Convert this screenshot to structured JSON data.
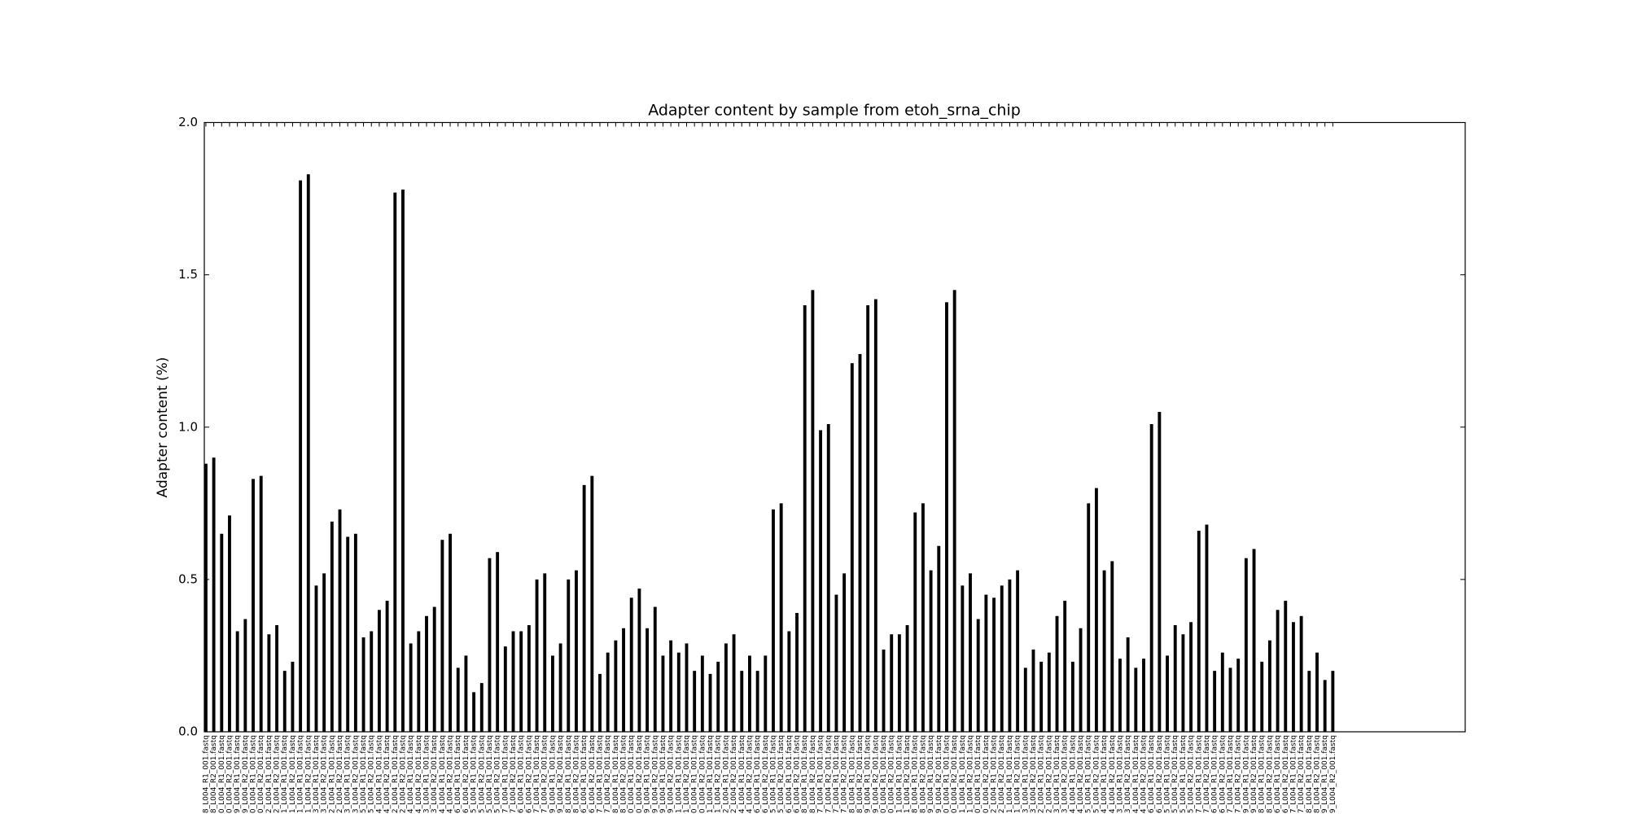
{
  "chart_data": {
    "type": "bar",
    "title": "Adapter content by sample from etoh_srna_chip",
    "y_label": "Adapter content (%)",
    "color": "#000000",
    "xlim": [
      0,
      160
    ],
    "ylim": [
      0,
      2
    ],
    "yticks": [
      {
        "value": 0,
        "label": "0.0"
      },
      0.5,
      {
        "value": 1,
        "label": "1.0"
      },
      1.5,
      {
        "value": 2,
        "label": "2.0"
      }
    ],
    "grid": false,
    "categories": [
      "8_L004_R1_001.fastq",
      "8_L004_R2_001.fastq",
      "0_L004_R1_001.fastq",
      "0_L004_R2_001.fastq",
      "9_L004_R1_001.fastq",
      "9_L004_R2_001.fastq",
      "0_L004_R1_001.fastq",
      "0_L004_R2_001.fastq",
      "2_L004_R1_001.fastq",
      "2_L004_R2_001.fastq",
      "1_L004_R1_001.fastq",
      "1_L004_R2_001.fastq",
      "1_L004_R1_001.fastq",
      "1_L004_R2_001.fastq",
      "3_L004_R1_001.fastq",
      "3_L004_R2_001.fastq",
      "2_L004_R1_001.fastq",
      "2_L004_R2_001.fastq",
      "3_L004_R1_001.fastq",
      "3_L004_R2_001.fastq",
      "5_L004_R1_001.fastq",
      "5_L004_R2_001.fastq",
      "4_L004_R1_001.fastq",
      "4_L004_R2_001.fastq",
      "2_L004_R1_001.fastq",
      "2_L004_R2_001.fastq",
      "4_L004_R1_001.fastq",
      "4_L004_R2_001.fastq",
      "3_L004_R1_001.fastq",
      "3_L004_R2_001.fastq",
      "4_L004_R1_001.fastq",
      "4_L004_R2_001.fastq",
      "6_L004_R1_001.fastq",
      "6_L004_R2_001.fastq",
      "5_L004_R1_001.fastq",
      "5_L004_R2_001.fastq",
      "5_L004_R1_001.fastq",
      "5_L004_R2_001.fastq",
      "7_L004_R1_001.fastq",
      "7_L004_R2_001.fastq",
      "6_L004_R1_001.fastq",
      "6_L004_R2_001.fastq",
      "7_L004_R1_001.fastq",
      "7_L004_R2_001.fastq",
      "9_L004_R1_001.fastq",
      "9_L004_R2_001.fastq",
      "8_L004_R1_001.fastq",
      "8_L004_R2_001.fastq",
      "6_L004_R1_001.fastq",
      "6_L004_R2_001.fastq",
      "7_L004_R1_001.fastq",
      "7_L004_R2_001.fastq",
      "8_L004_R1_001.fastq",
      "8_L004_R2_001.fastq",
      "0_L004_R1_001.fastq",
      "0_L004_R2_001.fastq",
      "9_L004_R1_001.fastq",
      "9_L004_R2_001.fastq",
      "9_L004_R1_001.fastq",
      "9_L004_R2_001.fastq",
      "1_L004_R1_001.fastq",
      "1_L004_R2_001.fastq",
      "0_L004_R1_001.fastq",
      "0_L004_R2_001.fastq",
      "1_L004_R1_001.fastq",
      "1_L004_R2_001.fastq",
      "2_L004_R1_001.fastq",
      "2_L004_R2_001.fastq",
      "4_L004_R1_001.fastq",
      "4_L004_R2_001.fastq",
      "6_L004_R1_001.fastq",
      "6_L004_R2_001.fastq",
      "5_L004_R1_001.fastq",
      "5_L004_R2_001.fastq",
      "6_L004_R1_001.fastq",
      "6_L004_R2_001.fastq",
      "8_L004_R1_001.fastq",
      "8_L004_R2_001.fastq",
      "7_L004_R1_001.fastq",
      "7_L004_R2_001.fastq",
      "7_L004_R1_001.fastq",
      "7_L004_R2_001.fastq",
      "8_L004_R1_001.fastq",
      "8_L004_R2_001.fastq",
      "9_L004_R1_001.fastq",
      "9_L004_R2_001.fastq",
      "0_L004_R1_001.fastq",
      "0_L004_R2_001.fastq",
      "1_L004_R1_001.fastq",
      "1_L004_R2_001.fastq",
      "8_L004_R1_001.fastq",
      "8_L004_R2_001.fastq",
      "9_L004_R1_001.fastq",
      "9_L004_R2_001.fastq",
      "0_L004_R1_001.fastq",
      "0_L004_R2_001.fastq",
      "1_L004_R1_001.fastq",
      "1_L004_R2_001.fastq",
      "0_L004_R1_001.fastq",
      "0_L004_R2_001.fastq",
      "2_L004_R1_001.fastq",
      "2_L004_R2_001.fastq",
      "1_L004_R1_001.fastq",
      "1_L004_R2_001.fastq",
      "3_L004_R1_001.fastq",
      "3_L004_R2_001.fastq",
      "2_L004_R1_001.fastq",
      "2_L004_R2_001.fastq",
      "3_L004_R1_001.fastq",
      "3_L004_R2_001.fastq",
      "4_L004_R1_001.fastq",
      "4_L004_R2_001.fastq",
      "5_L004_R1_001.fastq",
      "5_L004_R2_001.fastq",
      "4_L004_R1_001.fastq",
      "4_L004_R2_001.fastq",
      "3_L004_R1_001.fastq",
      "3_L004_R2_001.fastq",
      "4_L004_R1_001.fastq",
      "4_L004_R2_001.fastq",
      "6_L004_R1_001.fastq",
      "6_L004_R2_001.fastq",
      "5_L004_R1_001.fastq",
      "5_L004_R2_001.fastq",
      "5_L004_R1_001.fastq",
      "5_L004_R2_001.fastq",
      "7_L004_R1_001.fastq",
      "7_L004_R2_001.fastq",
      "6_L004_R1_001.fastq",
      "6_L004_R2_001.fastq",
      "7_L004_R1_001.fastq",
      "7_L004_R2_001.fastq",
      "9_L004_R1_001.fastq",
      "9_L004_R2_001.fastq",
      "8_L004_R1_001.fastq",
      "8_L004_R2_001.fastq",
      "6_L004_R1_001.fastq",
      "6_L004_R2_001.fastq",
      "7_L004_R1_001.fastq",
      "7_L004_R2_001.fastq",
      "8_L004_R1_001.fastq",
      "8_L004_R2_001.fastq",
      "9_L004_R1_001.fastq",
      "9_L004_R2_001.fastq"
    ],
    "values": [
      0.88,
      0.9,
      0.65,
      0.71,
      0.33,
      0.37,
      0.83,
      0.84,
      0.32,
      0.35,
      0.2,
      0.23,
      1.81,
      1.83,
      0.48,
      0.52,
      0.69,
      0.73,
      0.64,
      0.65,
      0.31,
      0.33,
      0.4,
      0.43,
      1.77,
      1.78,
      0.29,
      0.33,
      0.38,
      0.41,
      0.63,
      0.65,
      0.21,
      0.25,
      0.13,
      0.16,
      0.57,
      0.59,
      0.28,
      0.33,
      0.33,
      0.35,
      0.5,
      0.52,
      0.25,
      0.29,
      0.5,
      0.53,
      0.81,
      0.84,
      0.19,
      0.26,
      0.3,
      0.34,
      0.44,
      0.47,
      0.34,
      0.41,
      0.25,
      0.3,
      0.26,
      0.29,
      0.2,
      0.25,
      0.19,
      0.23,
      0.29,
      0.32,
      0.2,
      0.25,
      0.2,
      0.25,
      0.73,
      0.75,
      0.33,
      0.39,
      1.4,
      1.45,
      0.99,
      1.01,
      0.45,
      0.52,
      1.21,
      1.24,
      1.4,
      1.42,
      0.27,
      0.32,
      0.32,
      0.35,
      0.72,
      0.75,
      0.53,
      0.61,
      1.41,
      1.45,
      0.48,
      0.52,
      0.37,
      0.45,
      0.44,
      0.48,
      0.5,
      0.53,
      0.21,
      0.27,
      0.23,
      0.26,
      0.38,
      0.43,
      0.23,
      0.34,
      0.75,
      0.8,
      0.53,
      0.56,
      0.24,
      0.31,
      0.21,
      0.24,
      1.01,
      1.05,
      0.25,
      0.35,
      0.32,
      0.36,
      0.66,
      0.68,
      0.2,
      0.26,
      0.21,
      0.24,
      0.57,
      0.6,
      0.23,
      0.3,
      0.4,
      0.43,
      0.36,
      0.38,
      0.2,
      0.26,
      0.17,
      0.2
    ]
  }
}
